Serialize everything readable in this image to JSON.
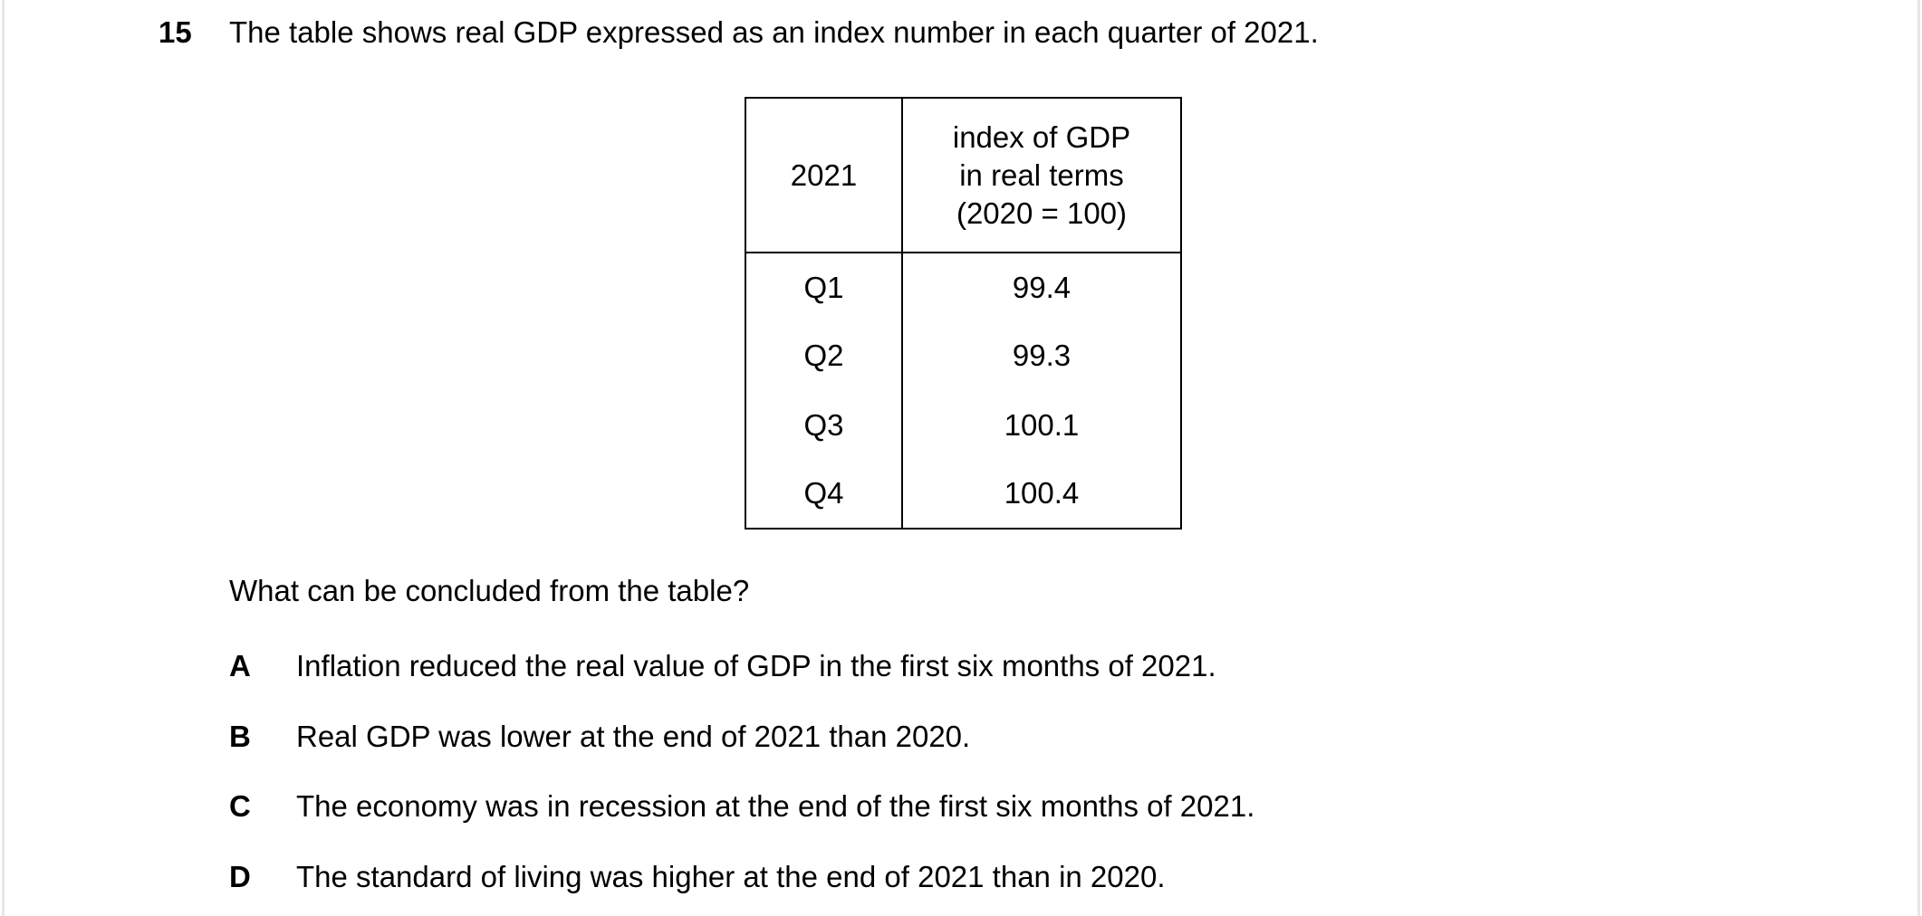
{
  "page": {
    "background_color": "#ffffff",
    "edge_line_color": "#e6e6e6",
    "text_color": "#000000"
  },
  "question": {
    "number": "15",
    "text": "The table shows real GDP expressed as an index number in each quarter of 2021.",
    "prompt": "What can be concluded from the table?"
  },
  "table": {
    "col1_header": "2021",
    "col2_header_lines": {
      "line1": "index of GDP",
      "line2": "in real terms",
      "line3": "(2020 = 100)"
    },
    "rows": [
      {
        "quarter": "Q1",
        "index": "99.4"
      },
      {
        "quarter": "Q2",
        "index": "99.3"
      },
      {
        "quarter": "Q3",
        "index": "100.1"
      },
      {
        "quarter": "Q4",
        "index": "100.4"
      }
    ]
  },
  "options": [
    {
      "letter": "A",
      "text": "Inflation reduced the real value of GDP in the first six months of 2021."
    },
    {
      "letter": "B",
      "text": "Real GDP was lower at the end of 2021 than 2020."
    },
    {
      "letter": "C",
      "text": "The economy was in recession at the end of the first six months of 2021."
    },
    {
      "letter": "D",
      "text": "The standard of living was higher at the end of 2021 than in 2020."
    }
  ]
}
